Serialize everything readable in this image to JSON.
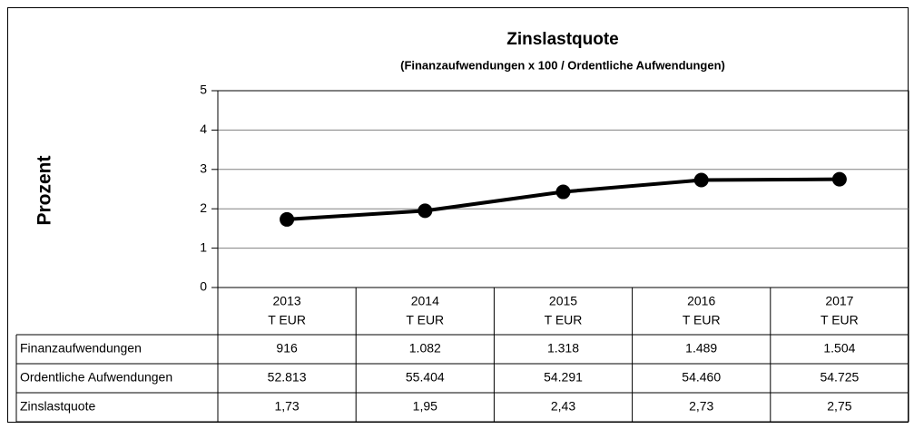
{
  "chart_data": {
    "type": "line",
    "title": "Zinslastquote",
    "subtitle": "(Finanzaufwendungen x 100 / Ordentliche Aufwendungen)",
    "y_label": "Prozent",
    "categories": [
      "2013",
      "2014",
      "2015",
      "2016",
      "2017"
    ],
    "category_unit": "T EUR",
    "series": [
      {
        "name": "Zinslastquote",
        "color": "#000000",
        "values": [
          1.73,
          1.95,
          2.43,
          2.73,
          2.75
        ],
        "value_labels": [
          "1,73",
          "1,95",
          "2,43",
          "2,73",
          "2,75"
        ]
      }
    ],
    "ylim": [
      0,
      5
    ],
    "yticks": [
      0,
      1,
      2,
      3,
      4,
      5
    ],
    "grid": true,
    "table_rows": [
      {
        "label": "Finanzaufwendungen",
        "cells": [
          "916",
          "1.082",
          "1.318",
          "1.489",
          "1.504"
        ]
      },
      {
        "label": "Ordentliche Aufwendungen",
        "cells": [
          "52.813",
          "55.404",
          "54.291",
          "54.460",
          "54.725"
        ]
      }
    ]
  }
}
